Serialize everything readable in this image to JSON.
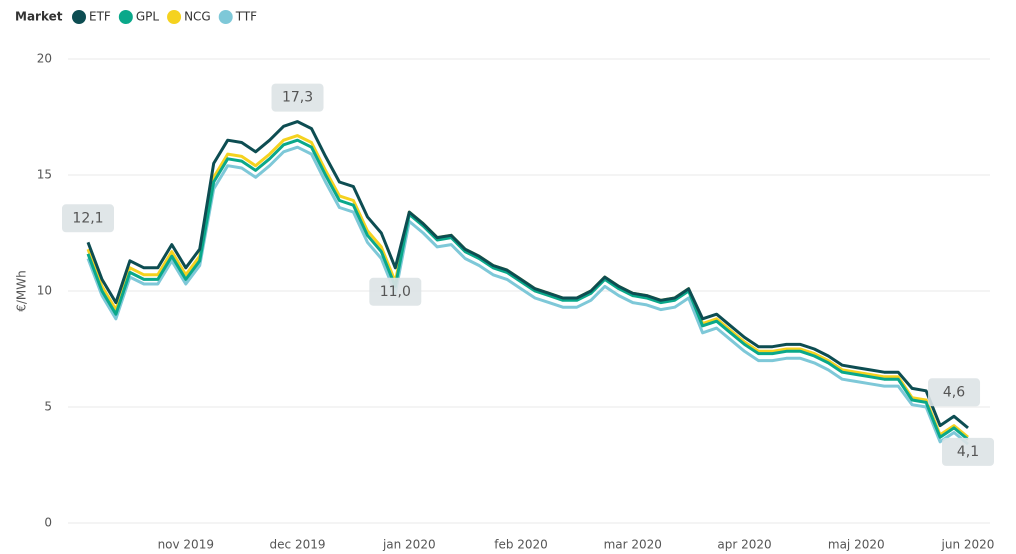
{
  "chart_data": {
    "type": "line",
    "legend_title": "Market",
    "y_label": "€/MWh",
    "categories": [
      null,
      null,
      null,
      null,
      null,
      null,
      null,
      "nov 2019",
      null,
      null,
      null,
      null,
      null,
      null,
      null,
      "dec 2019",
      null,
      null,
      null,
      null,
      null,
      null,
      null,
      "jan 2020",
      null,
      null,
      null,
      null,
      null,
      null,
      null,
      "feb 2020",
      null,
      null,
      null,
      null,
      null,
      null,
      null,
      "mar 2020",
      null,
      null,
      null,
      null,
      null,
      null,
      null,
      "apr 2020",
      null,
      null,
      null,
      null,
      null,
      null,
      null,
      "maj 2020",
      null,
      null,
      null,
      null,
      null,
      null,
      null,
      "jun 2020"
    ],
    "series": [
      {
        "name": "ETF",
        "color": "#0d4d52",
        "values": [
          12.1,
          10.5,
          9.5,
          11.3,
          11.0,
          11.0,
          12.0,
          11.0,
          11.8,
          15.5,
          16.5,
          16.4,
          16.0,
          16.5,
          17.1,
          17.3,
          17.0,
          15.8,
          14.7,
          14.5,
          13.2,
          12.5,
          11.0,
          13.4,
          12.9,
          12.3,
          12.4,
          11.8,
          11.5,
          11.1,
          10.9,
          10.5,
          10.1,
          9.9,
          9.7,
          9.7,
          10.0,
          10.6,
          10.2,
          9.9,
          9.8,
          9.6,
          9.7,
          10.1,
          8.8,
          9.0,
          8.5,
          8.0,
          7.6,
          7.6,
          7.7,
          7.7,
          7.5,
          7.2,
          6.8,
          6.7,
          6.6,
          6.5,
          6.5,
          5.8,
          5.7,
          4.2,
          4.6,
          4.1
        ]
      },
      {
        "name": "GPL",
        "color": "#0aa88a",
        "values": [
          11.6,
          10.0,
          9.0,
          10.8,
          10.5,
          10.5,
          11.5,
          10.5,
          11.3,
          14.7,
          15.7,
          15.6,
          15.2,
          15.7,
          16.3,
          16.5,
          16.2,
          15.0,
          13.9,
          13.7,
          12.4,
          11.7,
          10.2,
          13.3,
          12.8,
          12.2,
          12.3,
          11.7,
          11.4,
          11.0,
          10.8,
          10.4,
          10.0,
          9.8,
          9.6,
          9.6,
          9.9,
          10.5,
          10.1,
          9.8,
          9.7,
          9.5,
          9.6,
          10.0,
          8.5,
          8.7,
          8.2,
          7.7,
          7.3,
          7.3,
          7.4,
          7.4,
          7.2,
          6.9,
          6.5,
          6.4,
          6.3,
          6.2,
          6.2,
          5.3,
          5.2,
          3.7,
          4.1,
          3.6
        ]
      },
      {
        "name": "NCG",
        "color": "#f5d21f",
        "values": [
          11.8,
          10.2,
          9.2,
          11.0,
          10.7,
          10.7,
          11.7,
          10.7,
          11.5,
          14.9,
          15.9,
          15.8,
          15.4,
          15.9,
          16.5,
          16.7,
          16.4,
          15.2,
          14.1,
          13.9,
          12.6,
          11.9,
          10.4,
          13.4,
          12.9,
          12.3,
          12.4,
          11.8,
          11.5,
          11.1,
          10.9,
          10.5,
          10.1,
          9.9,
          9.7,
          9.7,
          10.0,
          10.6,
          10.2,
          9.9,
          9.8,
          9.6,
          9.7,
          10.1,
          8.6,
          8.8,
          8.3,
          7.8,
          7.4,
          7.4,
          7.5,
          7.5,
          7.3,
          7.0,
          6.6,
          6.5,
          6.4,
          6.3,
          6.3,
          5.4,
          5.3,
          3.8,
          4.2,
          3.7
        ]
      },
      {
        "name": "TTF",
        "color": "#7ec8d8",
        "values": [
          11.4,
          9.8,
          8.8,
          10.6,
          10.3,
          10.3,
          11.3,
          10.3,
          11.1,
          14.4,
          15.4,
          15.3,
          14.9,
          15.4,
          16.0,
          16.2,
          15.9,
          14.7,
          13.6,
          13.4,
          12.1,
          11.4,
          9.9,
          13.0,
          12.5,
          11.9,
          12.0,
          11.4,
          11.1,
          10.7,
          10.5,
          10.1,
          9.7,
          9.5,
          9.3,
          9.3,
          9.6,
          10.2,
          9.8,
          9.5,
          9.4,
          9.2,
          9.3,
          9.7,
          8.2,
          8.4,
          7.9,
          7.4,
          7.0,
          7.0,
          7.1,
          7.1,
          6.9,
          6.6,
          6.2,
          6.1,
          6.0,
          5.9,
          5.9,
          5.1,
          5.0,
          3.5,
          3.9,
          3.4
        ]
      }
    ],
    "annotations": [
      {
        "label": "12,1",
        "value": 12.1
      },
      {
        "label": "17,3",
        "value": 17.3
      },
      {
        "label": "11,0",
        "value": 11.0
      },
      {
        "label": "4,6",
        "value": 4.6
      },
      {
        "label": "4,1",
        "value": 4.1
      }
    ],
    "ylim": [
      0,
      20
    ],
    "yticks": [
      0,
      5,
      10,
      15,
      20
    ],
    "grid": true
  }
}
